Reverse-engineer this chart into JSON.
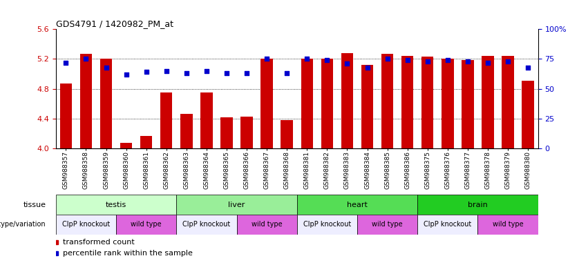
{
  "title": "GDS4791 / 1420982_PM_at",
  "samples": [
    "GSM988357",
    "GSM988358",
    "GSM988359",
    "GSM988360",
    "GSM988361",
    "GSM988362",
    "GSM988363",
    "GSM988364",
    "GSM988365",
    "GSM988366",
    "GSM988367",
    "GSM988368",
    "GSM988381",
    "GSM988382",
    "GSM988383",
    "GSM988384",
    "GSM988385",
    "GSM988386",
    "GSM988375",
    "GSM988376",
    "GSM988377",
    "GSM988378",
    "GSM988379",
    "GSM988380"
  ],
  "bar_values": [
    4.87,
    5.27,
    5.2,
    4.07,
    4.17,
    4.75,
    4.46,
    4.75,
    4.42,
    4.43,
    5.2,
    4.38,
    5.2,
    5.2,
    5.28,
    5.12,
    5.27,
    5.24,
    5.23,
    5.2,
    5.19,
    5.24,
    5.24,
    4.91
  ],
  "percentile_values": [
    72,
    75,
    68,
    62,
    64,
    65,
    63,
    65,
    63,
    63,
    75,
    63,
    75,
    74,
    71,
    68,
    75,
    74,
    73,
    74,
    73,
    72,
    73,
    68
  ],
  "ylim_left": [
    4.0,
    5.6
  ],
  "ylim_right": [
    0,
    100
  ],
  "yticks_left": [
    4.0,
    4.4,
    4.8,
    5.2,
    5.6
  ],
  "yticks_right": [
    0,
    25,
    50,
    75,
    100
  ],
  "ytick_labels_right": [
    "0",
    "25",
    "50",
    "75",
    "100%"
  ],
  "bar_color": "#cc0000",
  "dot_color": "#0000cc",
  "tissue_row": [
    {
      "label": "testis",
      "start": 0,
      "end": 6,
      "color": "#ccffcc"
    },
    {
      "label": "liver",
      "start": 6,
      "end": 12,
      "color": "#99ee99"
    },
    {
      "label": "heart",
      "start": 12,
      "end": 18,
      "color": "#55dd55"
    },
    {
      "label": "brain",
      "start": 18,
      "end": 24,
      "color": "#22cc22"
    }
  ],
  "genotype_row": [
    {
      "label": "ClpP knockout",
      "start": 0,
      "end": 3,
      "color": "#eeeeff"
    },
    {
      "label": "wild type",
      "start": 3,
      "end": 6,
      "color": "#dd66dd"
    },
    {
      "label": "ClpP knockout",
      "start": 6,
      "end": 9,
      "color": "#eeeeff"
    },
    {
      "label": "wild type",
      "start": 9,
      "end": 12,
      "color": "#dd66dd"
    },
    {
      "label": "ClpP knockout",
      "start": 12,
      "end": 15,
      "color": "#eeeeff"
    },
    {
      "label": "wild type",
      "start": 15,
      "end": 18,
      "color": "#dd66dd"
    },
    {
      "label": "ClpP knockout",
      "start": 18,
      "end": 21,
      "color": "#eeeeff"
    },
    {
      "label": "wild type",
      "start": 21,
      "end": 24,
      "color": "#dd66dd"
    }
  ],
  "grid_lines": [
    4.4,
    4.8,
    5.2
  ],
  "legend_items": [
    {
      "label": "transformed count",
      "color": "#cc0000"
    },
    {
      "label": "percentile rank within the sample",
      "color": "#0000cc"
    }
  ]
}
